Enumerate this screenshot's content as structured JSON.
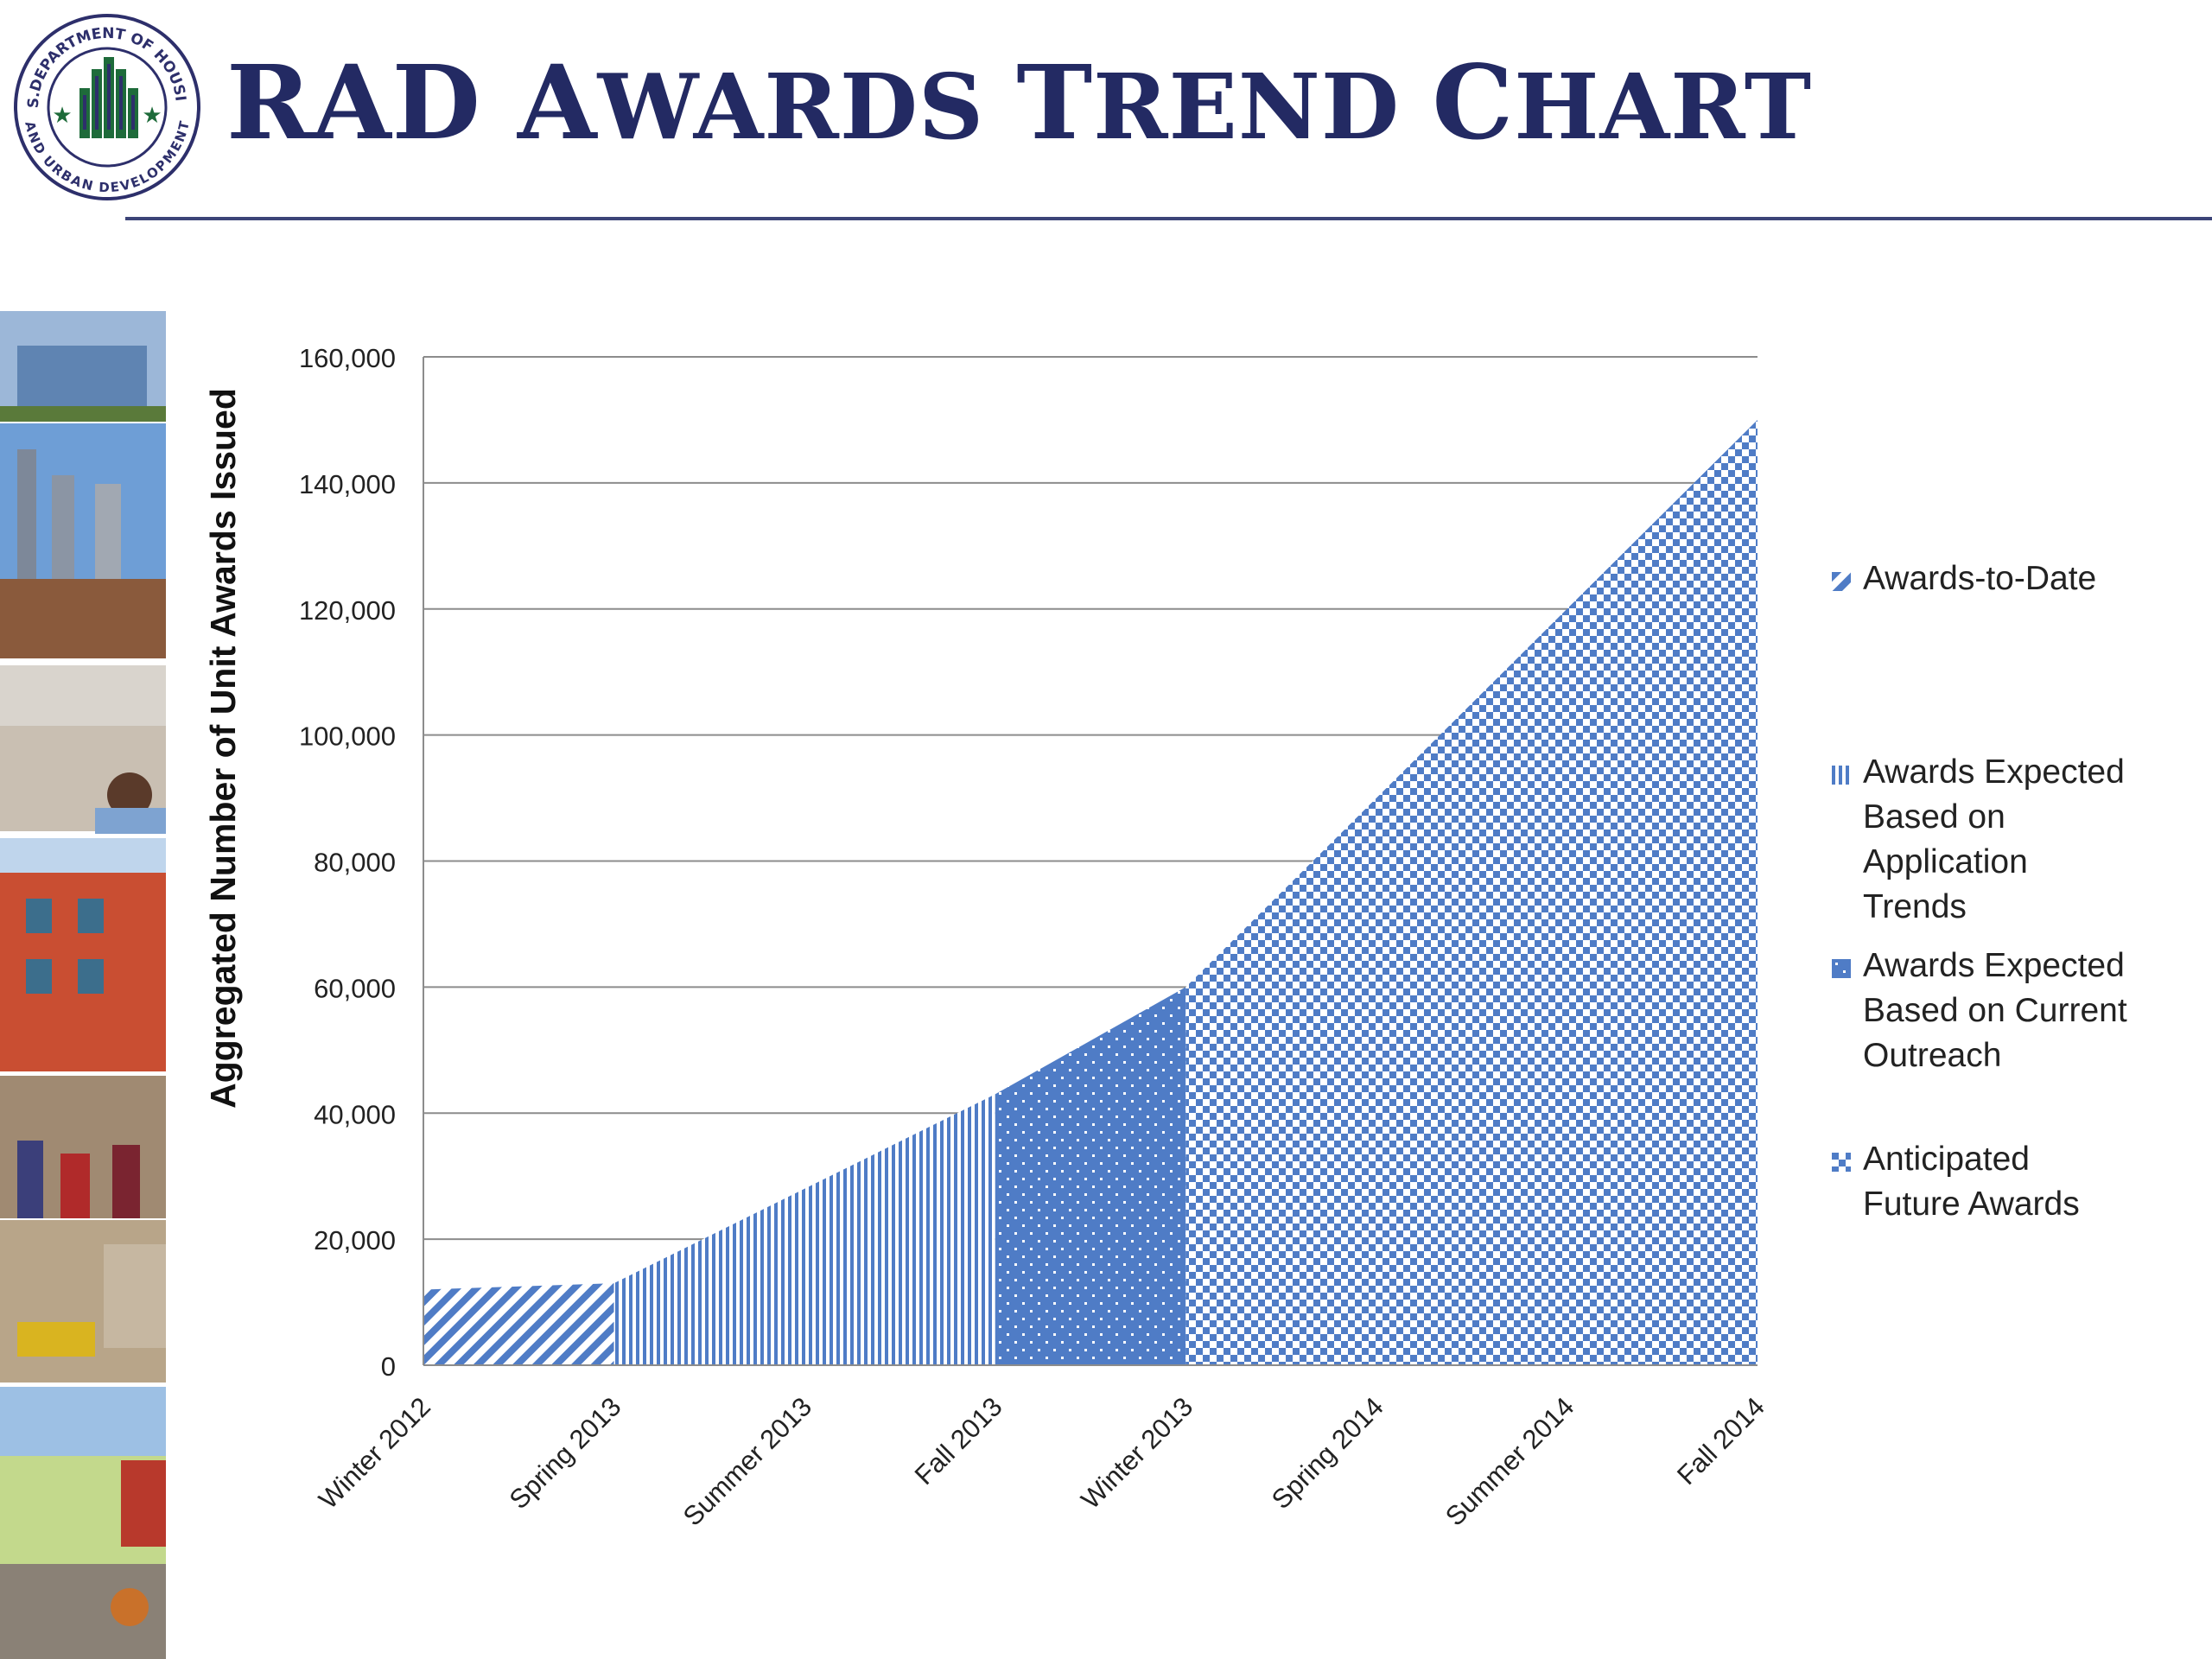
{
  "header": {
    "title_parts": [
      {
        "text": "RAD ",
        "big": true
      },
      {
        "text": "A",
        "big": true
      },
      {
        "text": "WARDS ",
        "big": false
      },
      {
        "text": "T",
        "big": true
      },
      {
        "text": "REND ",
        "big": false
      },
      {
        "text": "C",
        "big": true
      },
      {
        "text": "HART",
        "big": false
      }
    ],
    "seal_text": "U.S. DEPARTMENT OF HOUSING AND URBAN DEVELOPMENT",
    "colors": {
      "title": "#232A63",
      "rule": "#3C4478"
    }
  },
  "chart_data": {
    "type": "area",
    "title": "RAD Awards Trend Chart",
    "xlabel": "",
    "ylabel": "Aggregated Number of Unit Awards Issued",
    "categories": [
      "Winter 2012",
      "Spring 2013",
      "Summer 2013",
      "Fall 2013",
      "Winter 2013",
      "Spring 2014",
      "Summer 2014",
      "Fall 2014"
    ],
    "ylim": [
      0,
      160000
    ],
    "yticks": [
      0,
      20000,
      40000,
      60000,
      80000,
      100000,
      120000,
      140000,
      160000
    ],
    "ytick_labels": [
      "0",
      "20,000",
      "40,000",
      "60,000",
      "80,000",
      "100,000",
      "120,000",
      "140,000",
      "160,000"
    ],
    "grid": true,
    "legend_position": "right",
    "series": [
      {
        "name": "Awards-to-Date",
        "pattern": "diagonal",
        "x": [
          0,
          1
        ],
        "values": [
          12000,
          13000
        ]
      },
      {
        "name": "Awards Expected Based on Application Trends",
        "pattern": "vertical",
        "x": [
          1,
          2,
          3
        ],
        "values": [
          13000,
          28000,
          43000
        ]
      },
      {
        "name": "Awards Expected Based on Current Outreach",
        "pattern": "dots",
        "x": [
          3,
          4
        ],
        "values": [
          43000,
          60000
        ]
      },
      {
        "name": "Anticipated Future Awards",
        "pattern": "checker",
        "x": [
          4,
          5,
          6,
          7
        ],
        "values": [
          60000,
          90000,
          120000,
          150000
        ]
      }
    ],
    "colors": {
      "fill": "#4F7CC6",
      "grid": "#8C8C8C",
      "axis": "#8C8C8C"
    }
  },
  "legend_items": [
    {
      "lines": [
        "Awards-to-Date"
      ]
    },
    {
      "lines": [
        "Awards Expected",
        "Based on",
        "Application",
        "Trends"
      ]
    },
    {
      "lines": [
        "Awards Expected",
        "Based on Current",
        "Outreach"
      ]
    },
    {
      "lines": [
        "Anticipated",
        "Future Awards"
      ]
    }
  ]
}
